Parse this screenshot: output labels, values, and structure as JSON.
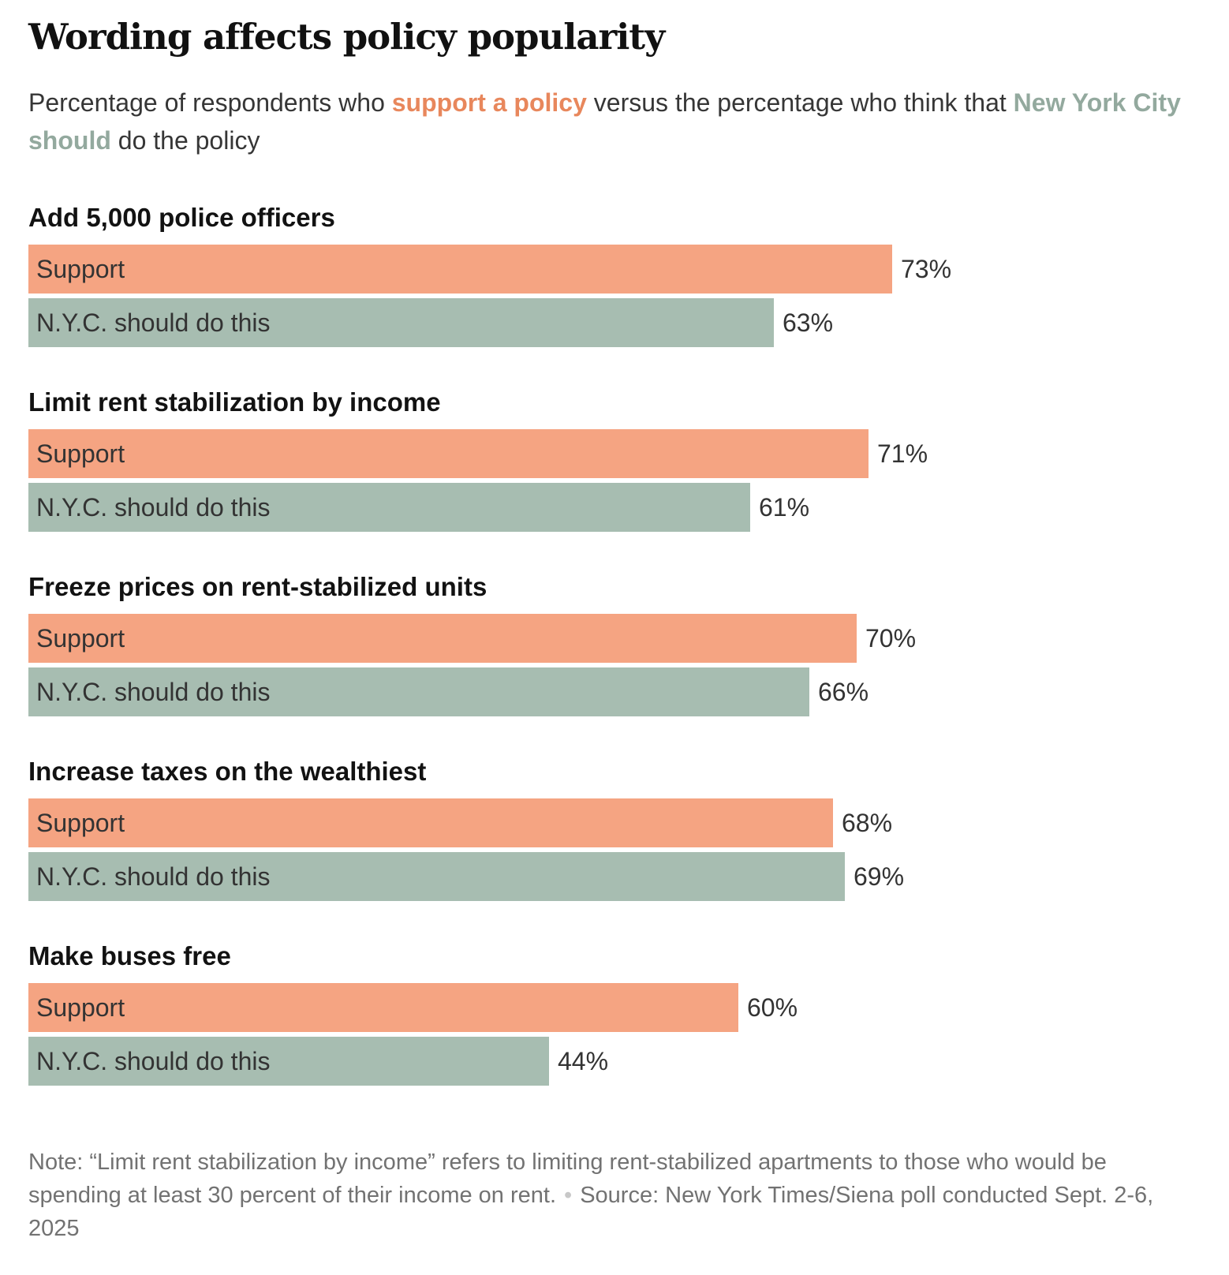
{
  "title": "Wording affects policy popularity",
  "subtitle": {
    "part1": "Percentage of respondents who ",
    "support_highlight": "support a policy",
    "part2": " versus the percentage who think that ",
    "should_highlight": "New York City should",
    "part3": " do the policy"
  },
  "colors": {
    "support": "#f5a482",
    "should": "#a7bdb1",
    "support_text": "#e8875c",
    "should_text": "#93a99e"
  },
  "note": {
    "note_text": "Note: “Limit rent stabilization by income” refers to limiting rent-stabilized apartments to those who would be spending at least 30 percent of their income on rent.",
    "separator": "•",
    "source_text": "Source: New York Times/Siena poll conducted Sept. 2-6, 2025"
  },
  "chart_data": {
    "type": "bar",
    "orientation": "horizontal",
    "unit": "%",
    "xlim": [
      0,
      100
    ],
    "categories": [
      "Add 5,000 police officers",
      "Limit rent stabilization by income",
      "Freeze prices on rent-stabilized units",
      "Increase taxes on the wealthiest",
      "Make buses free"
    ],
    "series": [
      {
        "name": "Support",
        "values": [
          73,
          71,
          70,
          68,
          60
        ]
      },
      {
        "name": "N.Y.C. should do this",
        "values": [
          63,
          61,
          66,
          69,
          44
        ]
      }
    ],
    "value_labels": [
      [
        "73%",
        "63%"
      ],
      [
        "71%",
        "61%"
      ],
      [
        "70%",
        "66%"
      ],
      [
        "68%",
        "69%"
      ],
      [
        "60%",
        "44%"
      ]
    ]
  }
}
